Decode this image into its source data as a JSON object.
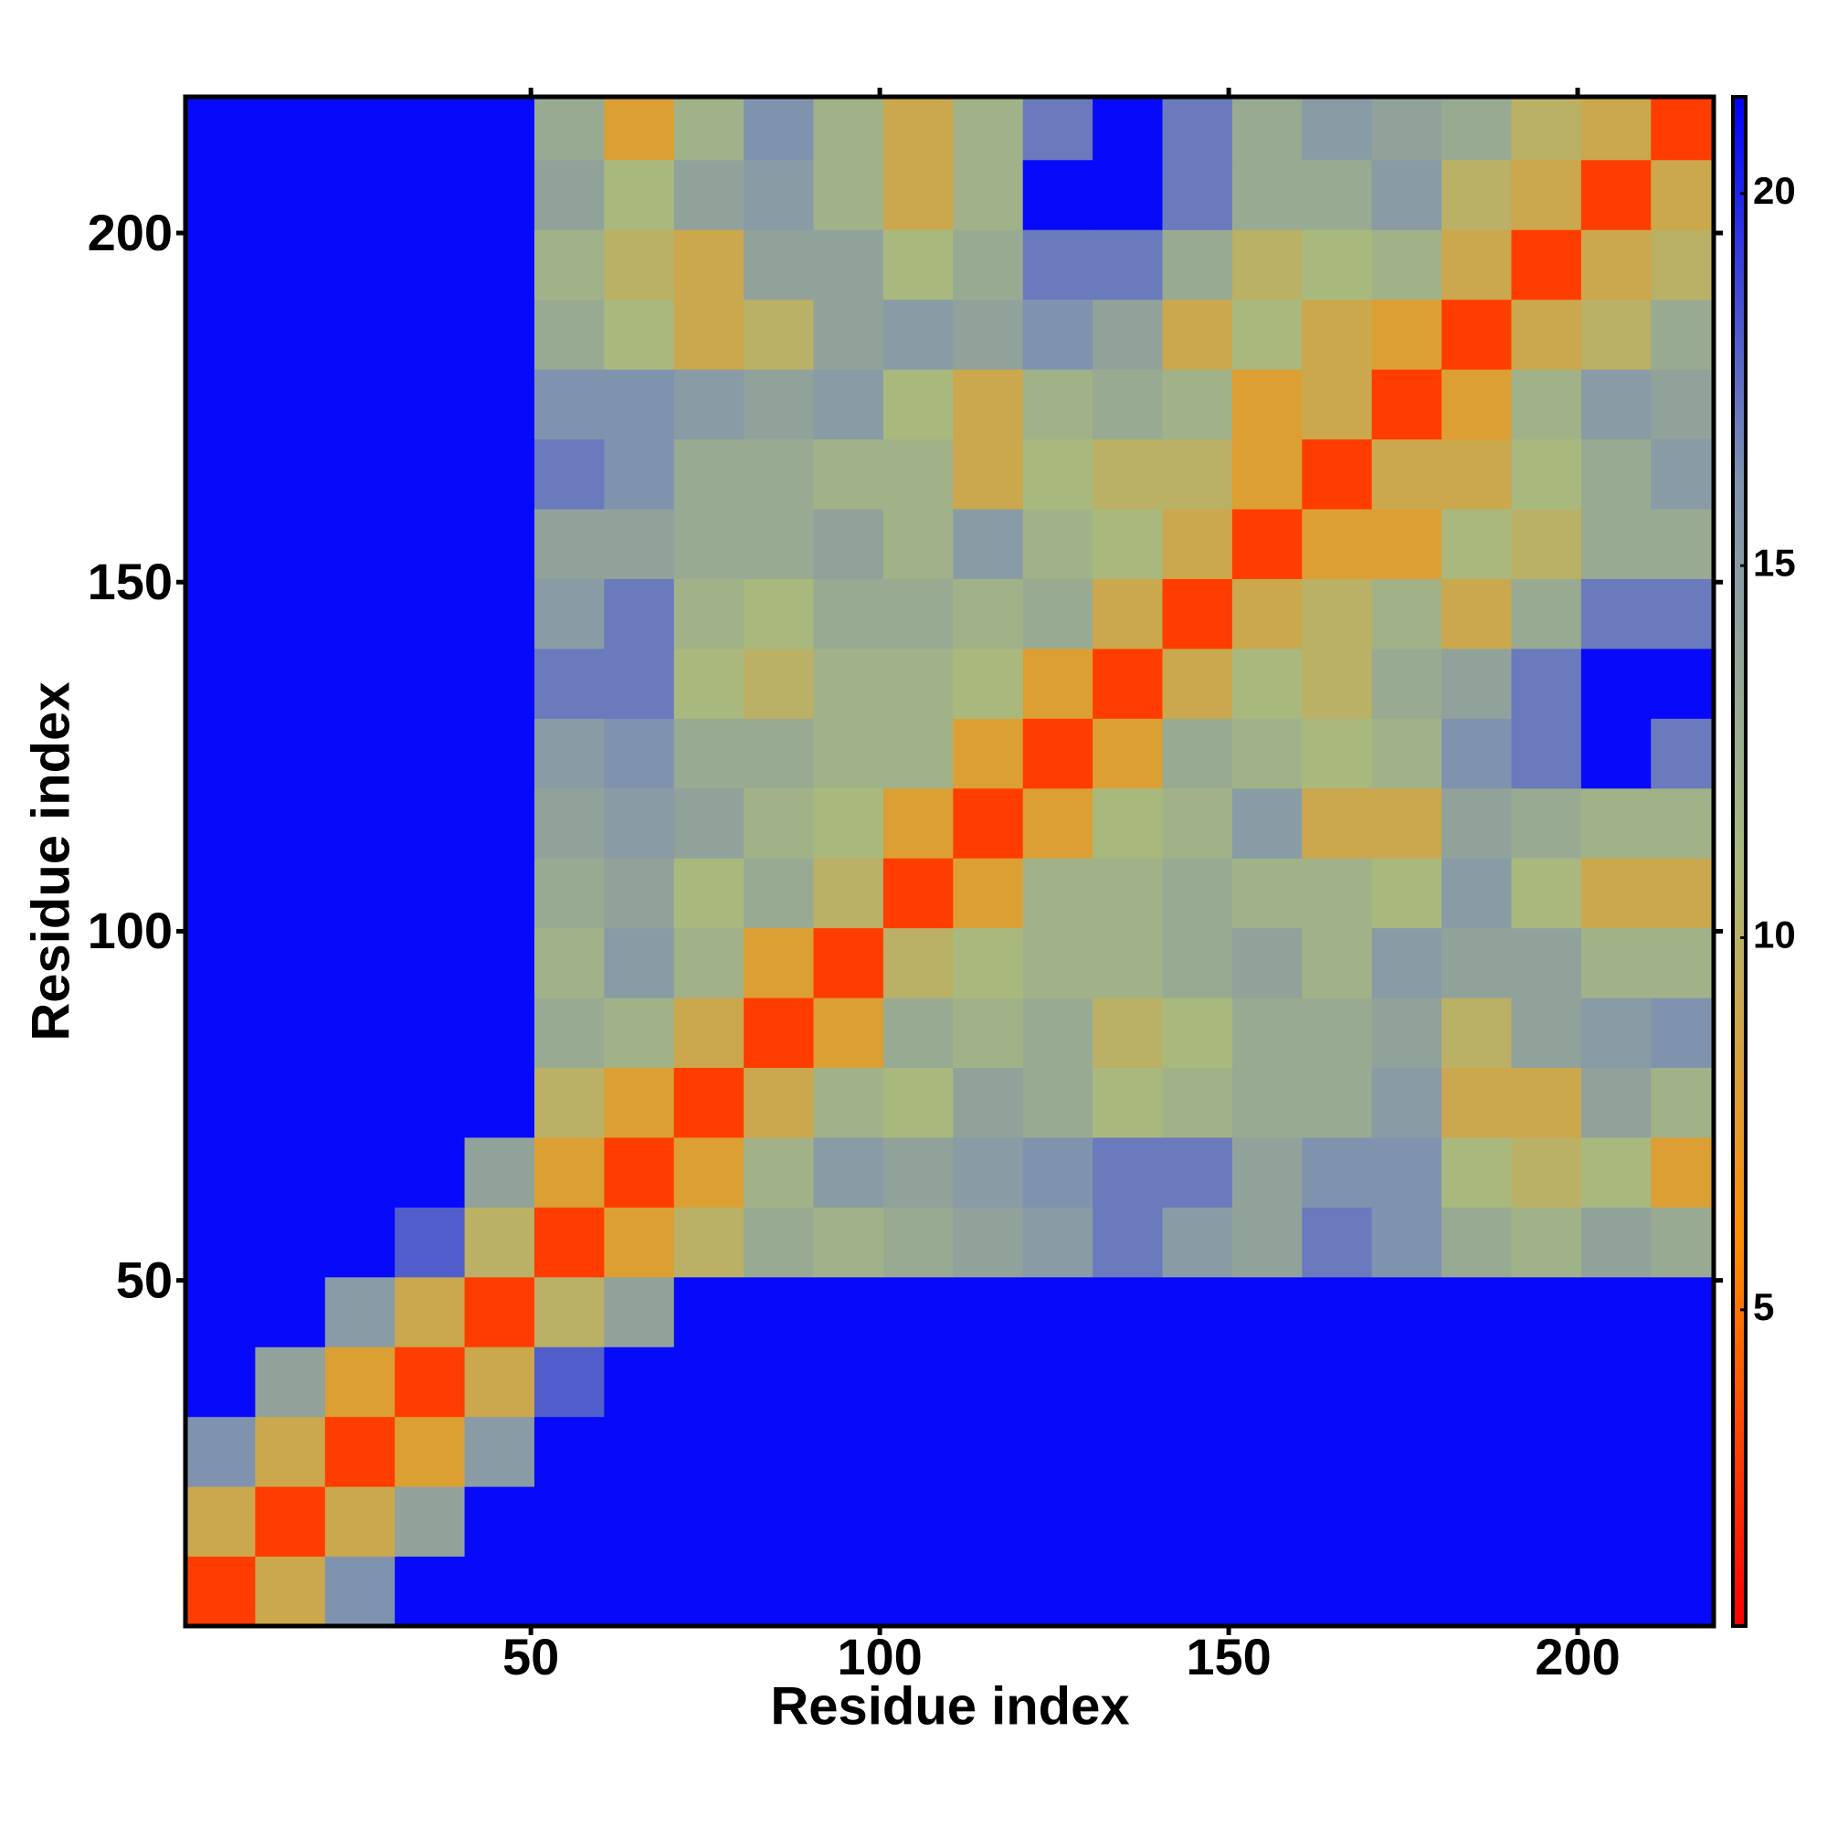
{
  "chart_data": {
    "type": "heatmap",
    "x_label": "Residue index",
    "y_label": "Residue index",
    "x_bins": [
      0.5,
      10.5,
      20.5,
      30.5,
      40.5,
      50.5,
      60.5,
      70.5,
      80.5,
      90.5,
      100.5,
      110.5,
      120.5,
      130.5,
      140.5,
      150.5,
      160.5,
      170.5,
      180.5,
      190.5,
      200.5,
      210.5,
      219.5
    ],
    "y_bins": [
      0.5,
      10.5,
      20.5,
      30.5,
      40.5,
      50.5,
      60.5,
      70.5,
      80.5,
      90.5,
      100.5,
      110.5,
      120.5,
      130.5,
      140.5,
      150.5,
      160.5,
      170.5,
      180.5,
      190.5,
      200.5,
      210.5,
      219.5
    ],
    "values": [
      [
        3,
        9,
        16,
        21,
        21,
        21,
        21,
        21,
        21,
        21,
        21,
        21,
        21,
        21,
        21,
        21,
        21,
        21,
        21,
        21,
        21,
        21
      ],
      [
        9,
        3,
        9,
        14,
        21,
        21,
        21,
        21,
        21,
        21,
        21,
        21,
        21,
        21,
        21,
        21,
        21,
        21,
        21,
        21,
        21,
        21
      ],
      [
        16,
        9,
        3,
        8,
        15,
        21,
        21,
        21,
        21,
        21,
        21,
        21,
        21,
        21,
        21,
        21,
        21,
        21,
        21,
        21,
        21,
        21
      ],
      [
        21,
        14,
        8,
        3,
        9,
        18,
        21,
        21,
        21,
        21,
        21,
        21,
        21,
        21,
        21,
        21,
        21,
        21,
        21,
        21,
        21,
        21
      ],
      [
        21,
        21,
        15,
        9,
        3,
        10,
        14,
        21,
        21,
        21,
        21,
        21,
        21,
        21,
        21,
        21,
        21,
        21,
        21,
        21,
        21,
        21
      ],
      [
        21,
        21,
        21,
        18,
        10,
        3,
        8,
        10,
        13,
        12,
        13,
        14,
        15,
        17,
        15,
        14,
        17,
        16,
        13,
        12,
        14,
        13
      ],
      [
        21,
        21,
        21,
        21,
        14,
        8,
        3,
        8,
        12,
        15,
        14,
        15,
        16,
        17,
        17,
        14,
        16,
        16,
        11,
        10,
        11,
        8
      ],
      [
        21,
        21,
        21,
        21,
        21,
        10,
        8,
        3,
        9,
        12,
        11,
        14,
        13,
        11,
        12,
        13,
        13,
        15,
        9,
        9,
        14,
        12
      ],
      [
        21,
        21,
        21,
        21,
        21,
        13,
        12,
        9,
        3,
        8,
        13,
        12,
        13,
        10,
        11,
        13,
        13,
        14,
        10,
        14,
        15,
        16
      ],
      [
        21,
        21,
        21,
        21,
        21,
        12,
        15,
        12,
        8,
        3,
        10,
        11,
        12,
        12,
        13,
        14,
        12,
        15,
        14,
        14,
        12,
        12
      ],
      [
        21,
        21,
        21,
        21,
        21,
        13,
        14,
        11,
        13,
        10,
        3,
        8,
        12,
        12,
        13,
        12,
        12,
        11,
        15,
        11,
        9,
        9
      ],
      [
        21,
        21,
        21,
        21,
        21,
        14,
        15,
        14,
        12,
        11,
        8,
        3,
        8,
        11,
        12,
        15,
        9,
        9,
        14,
        13,
        12,
        12
      ],
      [
        21,
        21,
        21,
        21,
        21,
        15,
        16,
        13,
        13,
        12,
        12,
        8,
        3,
        8,
        13,
        12,
        11,
        12,
        16,
        17,
        21,
        17
      ],
      [
        21,
        21,
        21,
        21,
        21,
        17,
        17,
        11,
        10,
        12,
        12,
        11,
        8,
        3,
        9,
        11,
        10,
        13,
        14,
        17,
        21,
        21
      ],
      [
        21,
        21,
        21,
        21,
        21,
        15,
        17,
        12,
        11,
        13,
        13,
        12,
        13,
        9,
        3,
        9,
        10,
        12,
        9,
        13,
        17,
        17
      ],
      [
        21,
        21,
        21,
        21,
        21,
        14,
        14,
        13,
        13,
        14,
        12,
        15,
        12,
        11,
        9,
        3,
        8,
        8,
        11,
        10,
        13,
        13
      ],
      [
        21,
        21,
        21,
        21,
        21,
        17,
        16,
        13,
        13,
        12,
        12,
        9,
        11,
        10,
        10,
        8,
        3,
        9,
        9,
        11,
        13,
        15
      ],
      [
        21,
        21,
        21,
        21,
        21,
        16,
        16,
        15,
        14,
        15,
        11,
        9,
        12,
        13,
        12,
        8,
        9,
        3,
        8,
        12,
        15,
        14
      ],
      [
        21,
        21,
        21,
        21,
        21,
        13,
        11,
        9,
        10,
        14,
        15,
        14,
        16,
        14,
        9,
        11,
        9,
        8,
        3,
        9,
        10,
        13
      ],
      [
        21,
        21,
        21,
        21,
        21,
        12,
        10,
        9,
        14,
        14,
        11,
        13,
        17,
        17,
        13,
        10,
        11,
        12,
        9,
        3,
        9,
        10
      ],
      [
        21,
        21,
        21,
        21,
        21,
        14,
        11,
        14,
        15,
        12,
        9,
        12,
        21,
        21,
        17,
        13,
        13,
        15,
        10,
        9,
        3,
        9
      ],
      [
        21,
        21,
        21,
        21,
        21,
        13,
        8,
        12,
        16,
        12,
        9,
        12,
        17,
        21,
        17,
        13,
        15,
        14,
        13,
        10,
        9,
        3
      ]
    ],
    "xlim": [
      0.5,
      219.5
    ],
    "ylim": [
      0.5,
      219.5
    ],
    "xticks": [
      50,
      100,
      150,
      200
    ],
    "yticks": [
      50,
      100,
      150,
      200
    ],
    "colors": [
      "#ff0000",
      "#ff8c00",
      "#a9b97f",
      "#7f92b0",
      "#0000ff"
    ],
    "colorbar_lim": [
      0.75,
      21.3
    ],
    "colorbar_ticks": [
      5,
      10,
      15,
      20
    ]
  }
}
